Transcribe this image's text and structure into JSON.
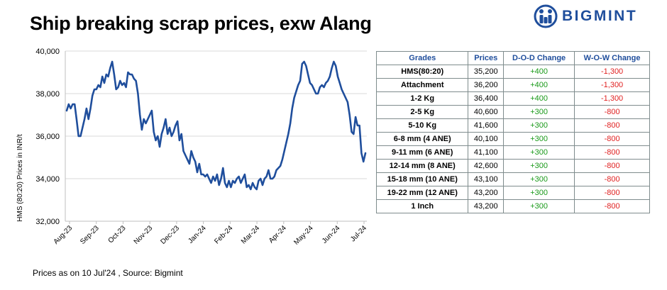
{
  "title": "Ship breaking scrap prices, exw Alang",
  "brand": {
    "name": "BIGMINT",
    "logo_icon": "bigmint-logo-icon",
    "color": "#1f4e9c"
  },
  "footnote": "Prices as on 10 Jul'24 , Source:  Bigmint",
  "chart_data": {
    "type": "line",
    "title": "",
    "xlabel": "",
    "ylabel": "HMS (80:20) Prices in INR/t",
    "ylim": [
      32000,
      40000
    ],
    "yticks": [
      32000,
      34000,
      36000,
      38000,
      40000
    ],
    "ytick_labels": [
      "32,000",
      "34,000",
      "36,000",
      "38,000",
      "40,000"
    ],
    "xticks": [
      "Aug-23",
      "Sep-23",
      "Oct-23",
      "Nov-23",
      "Dec-23",
      "Jan-24",
      "Feb-24",
      "Mar-24",
      "Apr-24",
      "May-24",
      "Jun-24",
      "Jul-24"
    ],
    "grid": true,
    "line_color": "#1f4e9c",
    "series": [
      {
        "values": [
          37200,
          37500,
          37300,
          37500,
          37500,
          36800,
          36000,
          36000,
          36400,
          36800,
          37300,
          36800,
          37300,
          37900,
          38200,
          38200,
          38400,
          38300,
          38800,
          38500,
          38900,
          38800,
          39200,
          39500,
          38900,
          38200,
          38300,
          38600,
          38400,
          38500,
          38300,
          39000,
          38900,
          38900,
          38700,
          38600,
          38000,
          37000,
          36300,
          36800,
          36600,
          36800,
          37000,
          37200,
          36200,
          35800,
          36000,
          35500,
          36100,
          36400,
          36800,
          36100,
          36400,
          36000,
          36200,
          36500,
          36700,
          35800,
          36100,
          35300,
          35100,
          34900,
          34700,
          35300,
          35000,
          34800,
          34300,
          34700,
          34200,
          34200,
          34100,
          34200,
          34000,
          33800,
          34100,
          33900,
          34200,
          33700,
          34000,
          34500,
          33800,
          33600,
          33900,
          33600,
          33900,
          33800,
          34000,
          34100,
          33800,
          34000,
          34200,
          33600,
          33700,
          33500,
          33800,
          33600,
          33500,
          33900,
          34000,
          33700,
          34000,
          34100,
          34400,
          34000,
          34000,
          34100,
          34400,
          34500,
          34600,
          34900,
          35300,
          35700,
          36100,
          36600,
          37300,
          37800,
          38100,
          38400,
          38600,
          39400,
          39500,
          39300,
          38900,
          38500,
          38400,
          38200,
          38000,
          38000,
          38300,
          38400,
          38300,
          38500,
          38600,
          38800,
          39200,
          39500,
          39300,
          38800,
          38500,
          38200,
          38000,
          37800,
          37600,
          37000,
          36200,
          36100,
          36900,
          36500,
          36500,
          35200,
          34800,
          35200
        ]
      }
    ]
  },
  "table": {
    "headers": [
      "Grades",
      "Prices",
      "D-O-D Change",
      "W-O-W Change"
    ],
    "rows": [
      {
        "grade": "HMS(80:20)",
        "price": "35,200",
        "dod": "+400",
        "wow": "-1,300"
      },
      {
        "grade": "Attachment",
        "price": "36,200",
        "dod": "+400",
        "wow": "-1,300"
      },
      {
        "grade": "1-2 Kg",
        "price": "36,400",
        "dod": "+400",
        "wow": "-1,300"
      },
      {
        "grade": "2-5 Kg",
        "price": "40,600",
        "dod": "+300",
        "wow": "-800"
      },
      {
        "grade": "5-10 Kg",
        "price": "41,600",
        "dod": "+300",
        "wow": "-800"
      },
      {
        "grade": "6-8 mm (4 ANE)",
        "price": "40,100",
        "dod": "+300",
        "wow": "-800"
      },
      {
        "grade": "9-11 mm (6 ANE)",
        "price": "41,100",
        "dod": "+300",
        "wow": "-800"
      },
      {
        "grade": "12-14 mm (8 ANE)",
        "price": "42,600",
        "dod": "+300",
        "wow": "-800"
      },
      {
        "grade": "15-18 mm (10 ANE)",
        "price": "43,100",
        "dod": "+300",
        "wow": "-800"
      },
      {
        "grade": "19-22 mm (12 ANE)",
        "price": "43,200",
        "dod": "+300",
        "wow": "-800"
      },
      {
        "grade": "1 Inch",
        "price": "43,200",
        "dod": "+300",
        "wow": "-800"
      }
    ]
  }
}
